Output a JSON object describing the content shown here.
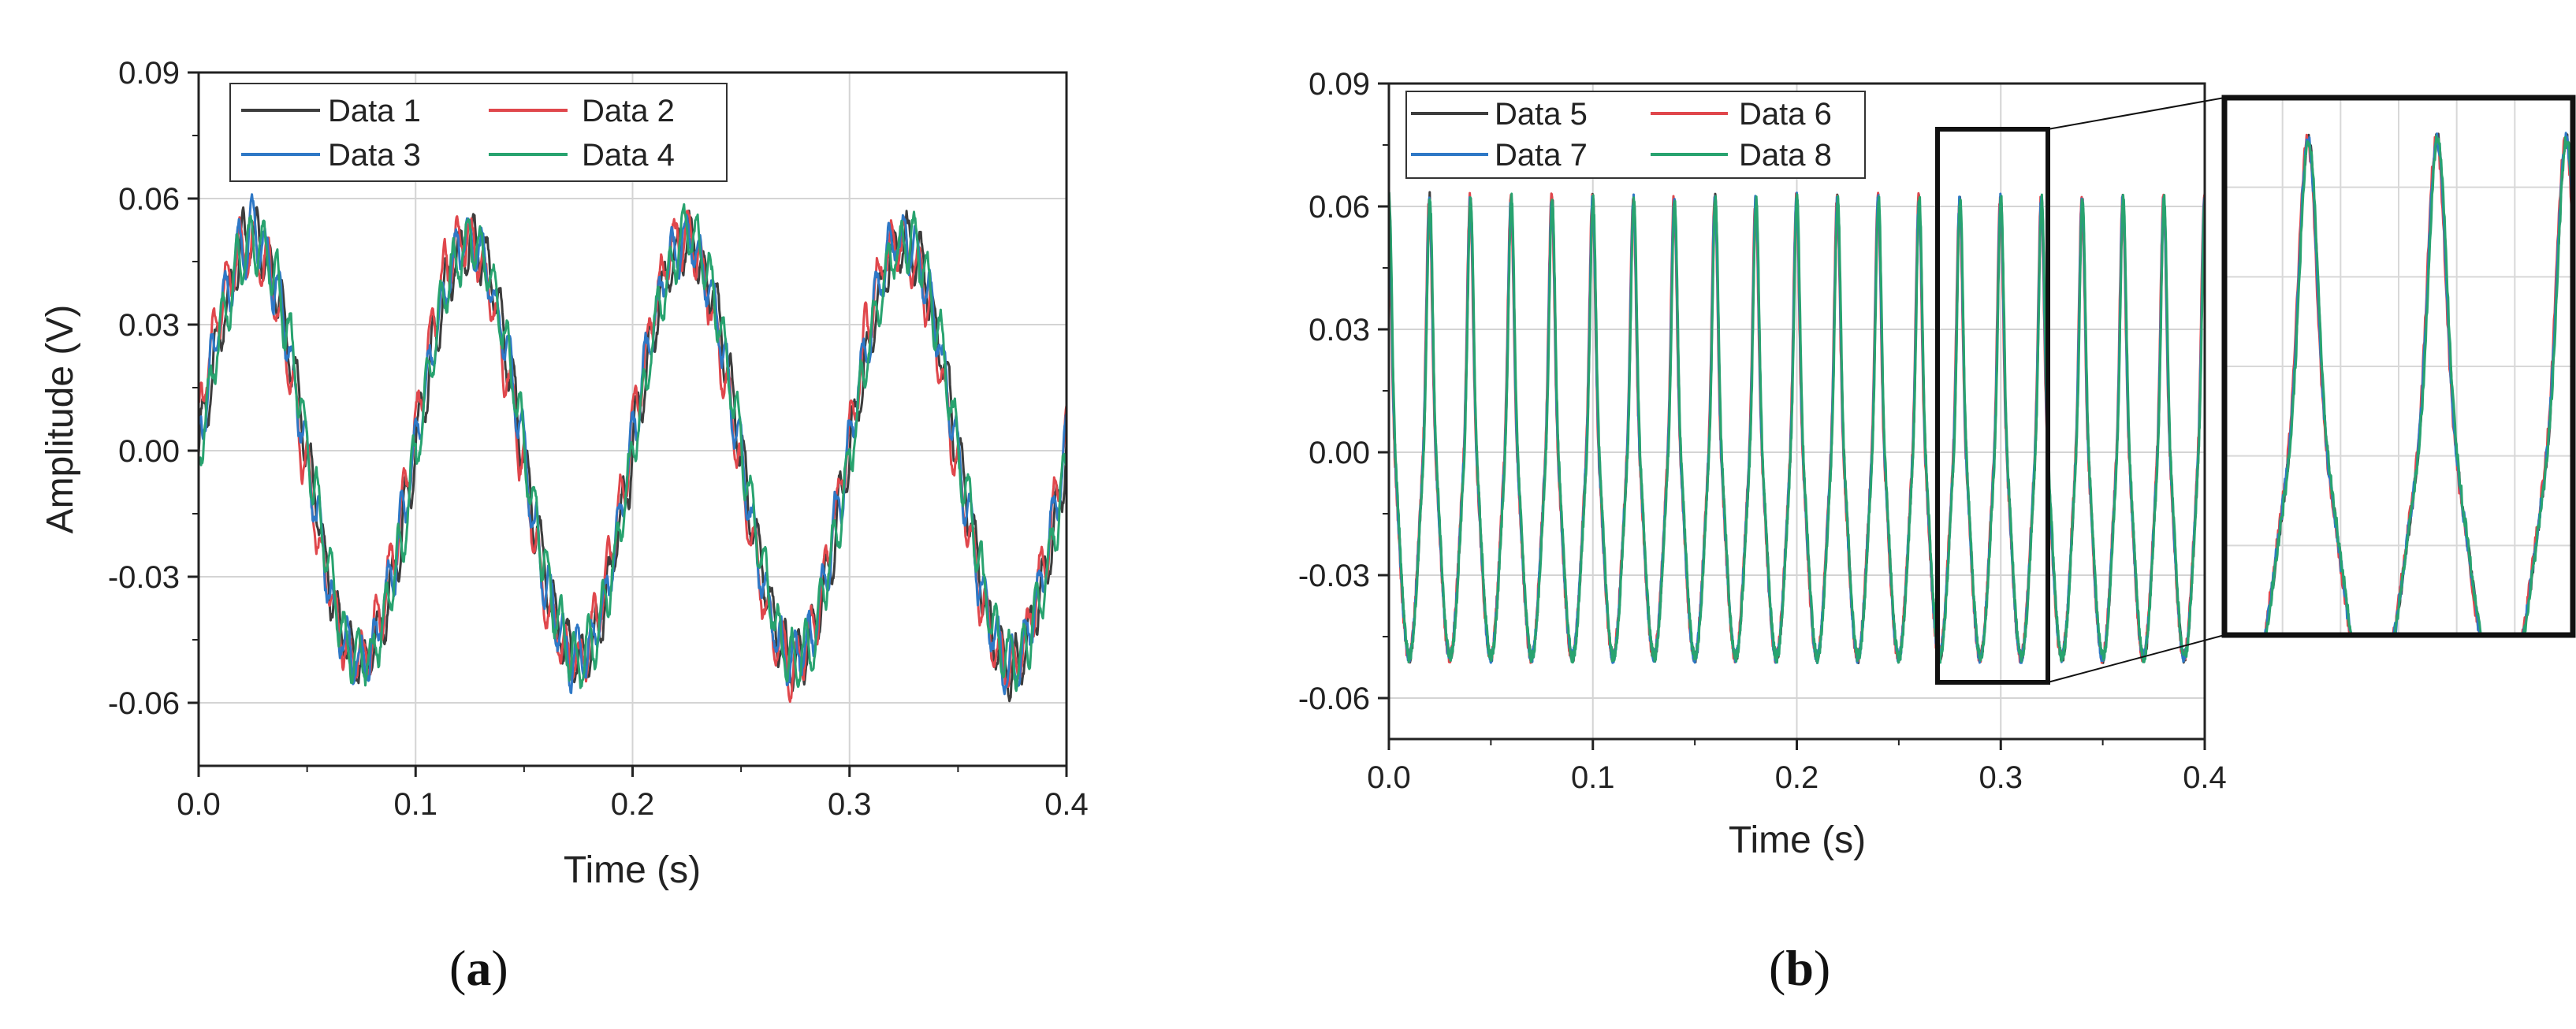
{
  "panel_labels": {
    "a": {
      "open": "(",
      "letter": "a",
      "close": ")"
    },
    "b": {
      "open": "(",
      "letter": "b",
      "close": ")"
    }
  },
  "colors": {
    "black": "#3d3d3d",
    "red": "#e0474c",
    "blue": "#2e78c6",
    "green": "#28a36f"
  },
  "chart_data": [
    {
      "id": "a",
      "type": "line",
      "title": "",
      "xlabel": "Time (s)",
      "ylabel": "Amplitude (V)",
      "xlim": [
        0,
        0.4
      ],
      "ylim": [
        -0.075,
        0.09
      ],
      "xticks": [
        "0.0",
        "0.1",
        "0.2",
        "0.3",
        "0.4"
      ],
      "yticks": [
        "-0.06",
        "-0.03",
        "0.00",
        "0.03",
        "0.06",
        "0.09"
      ],
      "grid": true,
      "legend_position": "top-left",
      "signal": {
        "frequency_hz": 10,
        "amplitude_v": 0.05,
        "harmonic_freq_hz": 160,
        "harmonic_amp_v": 0.006
      },
      "series": [
        {
          "name": "Data 1",
          "color": "#3d3d3d",
          "phase": 0.0
        },
        {
          "name": "Data 2",
          "color": "#e0474c",
          "phase": 0.12
        },
        {
          "name": "Data 3",
          "color": "#2e78c6",
          "phase": 0.04
        },
        {
          "name": "Data 4",
          "color": "#28a36f",
          "phase": -0.04
        }
      ]
    },
    {
      "id": "b",
      "type": "line",
      "title": "",
      "xlabel": "Time (s)",
      "ylabel": "",
      "xlim": [
        0,
        0.4
      ],
      "ylim": [
        -0.07,
        0.09
      ],
      "xticks": [
        "0.0",
        "0.1",
        "0.2",
        "0.3",
        "0.4"
      ],
      "yticks": [
        "-0.06",
        "-0.03",
        "0.00",
        "0.03",
        "0.06",
        "0.09"
      ],
      "grid": true,
      "legend_position": "top-left",
      "signal": {
        "frequency_hz": 50,
        "peak_v": 0.062,
        "trough_v": -0.05
      },
      "zoom_window": {
        "x": [
          0.267,
          0.321
        ],
        "y": [
          -0.056,
          0.079
        ]
      },
      "series": [
        {
          "name": "Data 5",
          "color": "#3d3d3d",
          "phase": 0.0
        },
        {
          "name": "Data 6",
          "color": "#e0474c",
          "phase": 0.08
        },
        {
          "name": "Data 7",
          "color": "#2e78c6",
          "phase": 0.03
        },
        {
          "name": "Data 8",
          "color": "#28a36f",
          "phase": -0.03
        }
      ]
    }
  ]
}
